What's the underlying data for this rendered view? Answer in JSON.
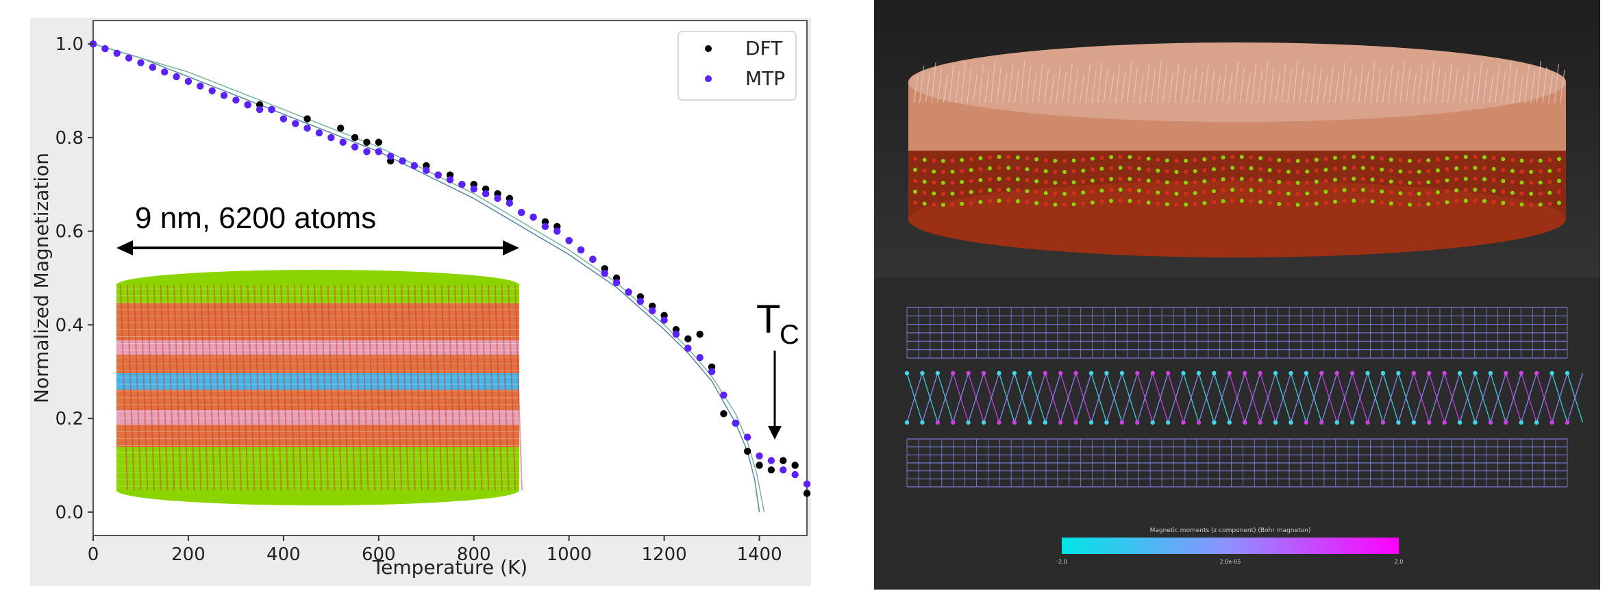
{
  "chart_data": {
    "type": "scatter",
    "title": "",
    "xlabel": "Temperature (K)",
    "ylabel": "Normalized Magnetization",
    "xlim": [
      0,
      1500
    ],
    "ylim": [
      -0.05,
      1.05
    ],
    "xticks": [
      0,
      200,
      400,
      600,
      800,
      1000,
      1200,
      1400
    ],
    "yticks": [
      0.0,
      0.2,
      0.4,
      0.6,
      0.8,
      1.0
    ],
    "xtick_labels": [
      "0",
      "200",
      "400",
      "600",
      "800",
      "1000",
      "1200",
      "1400"
    ],
    "ytick_labels": [
      "0.0",
      "0.2",
      "0.4",
      "0.6",
      "0.8",
      "1.0"
    ],
    "legend_position": "top-right",
    "grid": false,
    "series": [
      {
        "name": "DFT",
        "color": "#000000",
        "kind": "scatter",
        "x": [
          0,
          325,
          350,
          375,
          450,
          520,
          550,
          575,
          600,
          625,
          650,
          700,
          725,
          750,
          775,
          800,
          825,
          850,
          875,
          900,
          925,
          950,
          975,
          1000,
          1025,
          1050,
          1075,
          1100,
          1125,
          1150,
          1175,
          1200,
          1225,
          1250,
          1275,
          1300,
          1325,
          1350,
          1375,
          1400,
          1425,
          1450,
          1475,
          1500
        ],
        "y": [
          1.0,
          0.87,
          0.87,
          0.86,
          0.84,
          0.82,
          0.8,
          0.79,
          0.79,
          0.75,
          0.75,
          0.74,
          0.72,
          0.72,
          0.7,
          0.7,
          0.69,
          0.68,
          0.67,
          0.64,
          0.63,
          0.62,
          0.61,
          0.58,
          0.56,
          0.54,
          0.52,
          0.5,
          0.47,
          0.46,
          0.44,
          0.42,
          0.39,
          0.37,
          0.38,
          0.31,
          0.21,
          0.19,
          0.13,
          0.1,
          0.09,
          0.11,
          0.1,
          0.04
        ]
      },
      {
        "name": "MTP",
        "color": "#5b21ff",
        "kind": "scatter",
        "x": [
          0,
          25,
          50,
          75,
          100,
          125,
          150,
          175,
          200,
          225,
          250,
          275,
          300,
          325,
          350,
          375,
          400,
          425,
          450,
          475,
          500,
          525,
          550,
          575,
          600,
          625,
          650,
          675,
          700,
          725,
          750,
          775,
          800,
          825,
          850,
          875,
          900,
          925,
          950,
          975,
          1000,
          1025,
          1050,
          1075,
          1100,
          1125,
          1150,
          1175,
          1200,
          1225,
          1250,
          1275,
          1300,
          1325,
          1350,
          1375,
          1400,
          1425,
          1450,
          1475,
          1500
        ],
        "y": [
          1.0,
          0.99,
          0.98,
          0.97,
          0.96,
          0.95,
          0.94,
          0.93,
          0.92,
          0.91,
          0.9,
          0.89,
          0.88,
          0.87,
          0.86,
          0.86,
          0.84,
          0.83,
          0.82,
          0.81,
          0.8,
          0.79,
          0.78,
          0.77,
          0.77,
          0.76,
          0.75,
          0.74,
          0.73,
          0.72,
          0.71,
          0.7,
          0.69,
          0.68,
          0.67,
          0.66,
          0.64,
          0.63,
          0.61,
          0.6,
          0.58,
          0.56,
          0.54,
          0.51,
          0.49,
          0.47,
          0.45,
          0.43,
          0.41,
          0.38,
          0.35,
          0.33,
          0.3,
          0.25,
          0.19,
          0.16,
          0.12,
          0.11,
          0.09,
          0.08,
          0.06
        ]
      },
      {
        "name": "",
        "color": "#5d8aa8",
        "kind": "fit-line",
        "x": [
          0,
          100,
          200,
          300,
          400,
          500,
          600,
          700,
          800,
          900,
          1000,
          1100,
          1200,
          1250,
          1300,
          1350,
          1375,
          1390,
          1400
        ],
        "y": [
          1.0,
          0.97,
          0.93,
          0.89,
          0.85,
          0.81,
          0.77,
          0.72,
          0.67,
          0.61,
          0.55,
          0.48,
          0.39,
          0.34,
          0.28,
          0.19,
          0.13,
          0.07,
          0.0
        ]
      },
      {
        "name": "",
        "color": "#7fb6a0",
        "kind": "fit-line",
        "x": [
          0,
          100,
          200,
          300,
          400,
          500,
          600,
          700,
          800,
          900,
          1000,
          1100,
          1200,
          1250,
          1300,
          1350,
          1375,
          1395,
          1410
        ],
        "y": [
          1.0,
          0.97,
          0.94,
          0.9,
          0.86,
          0.82,
          0.78,
          0.73,
          0.68,
          0.62,
          0.56,
          0.49,
          0.4,
          0.35,
          0.29,
          0.21,
          0.15,
          0.08,
          0.0
        ]
      }
    ],
    "annotations": [
      {
        "text": "9 nm, 6200 atoms"
      },
      {
        "text": "T",
        "subscript": "C"
      }
    ]
  },
  "colorbar": {
    "title": "Magnetic moments (z component) (Bohr magneton)",
    "tick_labels": [
      "-2.0",
      "2.0e-05",
      "2.0"
    ],
    "color_low": "#00e5e5",
    "color_high": "#ff00ff"
  },
  "palette": {
    "green": "#8bd400",
    "red": "#d0301c",
    "orange": "#e07040",
    "pink": "#e6a0b8",
    "blue": "#48b4e8",
    "lattice": "#8c8cff"
  }
}
